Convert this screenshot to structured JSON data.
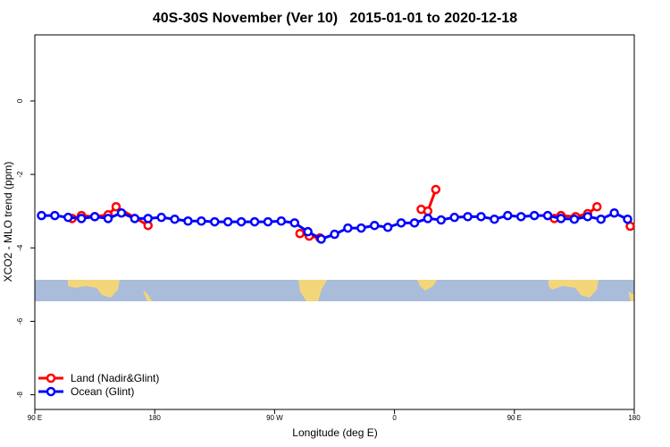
{
  "chart_data": {
    "type": "line",
    "title": "40S-30S November (Ver 10)   2015-01-01 to 2020-12-18",
    "x_label": "Longitude (deg E)",
    "y_label": "XCO2 - MLO trend (ppm)",
    "xlim": [
      90,
      540
    ],
    "ylim": [
      -8.4,
      1.8
    ],
    "xticks": [
      {
        "value": 90,
        "label": "90 E"
      },
      180,
      {
        "value": 270,
        "label": "90 W"
      },
      {
        "value": 360,
        "label": "0"
      },
      {
        "value": 450,
        "label": "90 E"
      },
      {
        "value": 540,
        "label": "180"
      }
    ],
    "yticks": [
      0,
      -2,
      -4,
      -6,
      -8
    ],
    "grid": false,
    "legend": "bottom-left",
    "series": [
      {
        "name": "Land (Nadir&Glint)",
        "color": "#ff0000",
        "x": [
          118,
          125,
          135,
          145,
          151,
          175,
          null,
          289,
          296,
          304,
          null,
          380,
          385,
          391,
          null,
          480,
          485,
          496,
          505,
          512,
          null,
          537
        ],
        "values": [
          -3.2,
          -3.12,
          -3.15,
          -3.1,
          -2.88,
          -3.39,
          null,
          -3.61,
          -3.68,
          -3.73,
          null,
          -2.95,
          -3.0,
          -2.41,
          null,
          -3.2,
          -3.12,
          -3.15,
          -3.07,
          -2.88,
          null,
          -3.41
        ]
      },
      {
        "name": "Ocean (Glint)",
        "color": "#0000ff",
        "x": [
          95,
          105,
          115,
          125,
          135,
          145,
          155,
          165,
          175,
          185,
          195,
          205,
          215,
          225,
          235,
          245,
          255,
          265,
          275,
          285,
          295,
          305,
          315,
          325,
          335,
          345,
          355,
          365,
          375,
          385,
          395,
          405,
          415,
          425,
          435,
          445,
          455,
          465,
          475,
          485,
          495,
          505,
          515,
          525,
          535
        ],
        "values": [
          -3.12,
          -3.12,
          -3.17,
          -3.2,
          -3.15,
          -3.2,
          -3.05,
          -3.2,
          -3.2,
          -3.17,
          -3.22,
          -3.27,
          -3.27,
          -3.29,
          -3.29,
          -3.29,
          -3.29,
          -3.29,
          -3.27,
          -3.32,
          -3.56,
          -3.76,
          -3.63,
          -3.46,
          -3.46,
          -3.39,
          -3.44,
          -3.32,
          -3.32,
          -3.2,
          -3.24,
          -3.17,
          -3.15,
          -3.15,
          -3.22,
          -3.12,
          -3.15,
          -3.12,
          -3.12,
          -3.2,
          -3.22,
          -3.15,
          -3.22,
          -3.05,
          -3.22
        ]
      }
    ]
  }
}
